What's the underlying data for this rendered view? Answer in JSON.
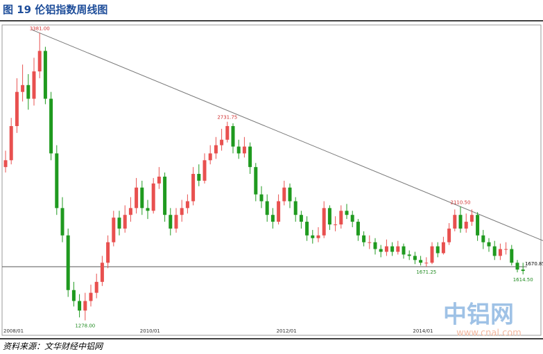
{
  "header": {
    "title": "图 19 伦铝指数周线图"
  },
  "chart_data": {
    "type": "candlestick",
    "categories": [
      "2008/01",
      null,
      null,
      null,
      null,
      null,
      null,
      null,
      null,
      null,
      null,
      null,
      null,
      null,
      null,
      null,
      null,
      null,
      null,
      null,
      null,
      null,
      null,
      null,
      "2010/01",
      null,
      null,
      null,
      null,
      null,
      null,
      null,
      null,
      null,
      null,
      null,
      null,
      null,
      null,
      null,
      null,
      null,
      null,
      null,
      null,
      null,
      null,
      null,
      "2012/01",
      null,
      null,
      null,
      null,
      null,
      null,
      null,
      null,
      null,
      null,
      null,
      null,
      null,
      null,
      null,
      null,
      null,
      null,
      null,
      null,
      null,
      null,
      null,
      "2014/01",
      null,
      null,
      null,
      null,
      null,
      null,
      null,
      null,
      null,
      null,
      null,
      null,
      null,
      null,
      null,
      null,
      null,
      null,
      null
    ],
    "open": [
      2400,
      2450,
      2700,
      2950,
      3000,
      2900,
      3100,
      3250,
      2900,
      2500,
      2100,
      1900,
      1500,
      1420,
      1350,
      1420,
      1480,
      1560,
      1700,
      1850,
      2030,
      1950,
      2050,
      2100,
      2250,
      2100,
      2080,
      2280,
      2330,
      2050,
      1950,
      2050,
      2100,
      2150,
      2350,
      2300,
      2450,
      2500,
      2560,
      2600,
      2700,
      2550,
      2500,
      2550,
      2400,
      2200,
      2150,
      2050,
      2000,
      2150,
      2250,
      2150,
      2050,
      2000,
      1900,
      1880,
      1900,
      2100,
      1980,
      1980,
      2080,
      2050,
      2000,
      1900,
      1850,
      1850,
      1800,
      1780,
      1820,
      1780,
      1820,
      1760,
      1750,
      1720,
      1700,
      1700,
      1820,
      1770,
      1850,
      1950,
      2050,
      1950,
      2000,
      2050,
      1900,
      1850,
      1820,
      1750,
      1800,
      1800,
      1700,
      1650
    ],
    "high": [
      2520,
      2760,
      3050,
      3150,
      3080,
      3200,
      3381,
      3280,
      2950,
      2560,
      2180,
      1950,
      1560,
      1470,
      1480,
      1540,
      1620,
      1750,
      1900,
      2080,
      2080,
      2120,
      2180,
      2320,
      2300,
      2160,
      2320,
      2400,
      2360,
      2100,
      2100,
      2160,
      2200,
      2400,
      2420,
      2500,
      2560,
      2620,
      2680,
      2731.75,
      2720,
      2600,
      2620,
      2580,
      2430,
      2260,
      2200,
      2100,
      2200,
      2300,
      2280,
      2180,
      2080,
      2040,
      1940,
      1960,
      2150,
      2120,
      2040,
      2120,
      2130,
      2080,
      2020,
      1930,
      1900,
      1880,
      1830,
      1870,
      1850,
      1860,
      1840,
      1790,
      1780,
      1750,
      1740,
      1850,
      1850,
      1890,
      1990,
      2090,
      2110.5,
      2060,
      2090,
      2070,
      1940,
      1880,
      1860,
      1840,
      1850,
      1830,
      1720,
      1700
    ],
    "low": [
      2360,
      2420,
      2650,
      2880,
      2820,
      2850,
      3050,
      2860,
      2450,
      2050,
      1850,
      1450,
      1380,
      1300,
      1278,
      1380,
      1440,
      1530,
      1660,
      1820,
      1900,
      1920,
      2000,
      2060,
      2050,
      2020,
      2060,
      2240,
      2000,
      1900,
      1920,
      2000,
      2060,
      2120,
      2260,
      2280,
      2420,
      2460,
      2520,
      2580,
      2500,
      2460,
      2470,
      2350,
      2150,
      2100,
      2000,
      1950,
      1980,
      2120,
      2100,
      2000,
      1950,
      1860,
      1840,
      1850,
      1880,
      1940,
      1930,
      1950,
      2020,
      1960,
      1860,
      1820,
      1800,
      1760,
      1740,
      1750,
      1750,
      1760,
      1730,
      1720,
      1690,
      1680,
      1671.25,
      1690,
      1740,
      1760,
      1830,
      1930,
      1920,
      1920,
      1970,
      1860,
      1800,
      1780,
      1720,
      1720,
      1760,
      1680,
      1630,
      1614.5
    ],
    "close": [
      2450,
      2700,
      2950,
      3000,
      2900,
      3100,
      3250,
      2900,
      2500,
      2100,
      1900,
      1500,
      1420,
      1350,
      1420,
      1480,
      1560,
      1700,
      1850,
      2030,
      1950,
      2050,
      2100,
      2250,
      2100,
      2080,
      2280,
      2330,
      2050,
      1950,
      2050,
      2100,
      2150,
      2350,
      2300,
      2450,
      2500,
      2560,
      2600,
      2700,
      2550,
      2500,
      2550,
      2400,
      2200,
      2150,
      2050,
      2000,
      2150,
      2250,
      2150,
      2050,
      2000,
      1900,
      1880,
      1900,
      2100,
      1980,
      1980,
      2080,
      2050,
      2000,
      1900,
      1850,
      1850,
      1800,
      1780,
      1820,
      1780,
      1820,
      1760,
      1750,
      1720,
      1700,
      1700,
      1820,
      1770,
      1850,
      1950,
      2050,
      1950,
      2000,
      2050,
      1900,
      1850,
      1820,
      1750,
      1800,
      1800,
      1700,
      1650,
      1640
    ],
    "high_labels": [
      null,
      null,
      null,
      null,
      null,
      null,
      "3381.00",
      null,
      null,
      null,
      null,
      null,
      null,
      null,
      null,
      null,
      null,
      null,
      null,
      null,
      null,
      null,
      null,
      null,
      null,
      null,
      null,
      null,
      null,
      null,
      null,
      null,
      null,
      null,
      null,
      null,
      null,
      null,
      null,
      "2731.75",
      null,
      null,
      null,
      null,
      null,
      null,
      null,
      null,
      null,
      null,
      null,
      null,
      null,
      null,
      null,
      null,
      null,
      null,
      null,
      null,
      null,
      null,
      null,
      null,
      null,
      null,
      null,
      null,
      null,
      null,
      null,
      null,
      null,
      null,
      null,
      null,
      null,
      null,
      null,
      null,
      "2110.50",
      null,
      null,
      null,
      null,
      null,
      null,
      null,
      null,
      null,
      null,
      null
    ],
    "low_labels": [
      null,
      null,
      null,
      null,
      null,
      null,
      null,
      null,
      null,
      null,
      null,
      null,
      null,
      null,
      "1278.00",
      null,
      null,
      null,
      null,
      null,
      null,
      null,
      null,
      null,
      null,
      null,
      null,
      null,
      null,
      null,
      null,
      null,
      null,
      null,
      null,
      null,
      null,
      null,
      null,
      null,
      null,
      null,
      null,
      null,
      null,
      null,
      null,
      null,
      null,
      null,
      null,
      null,
      null,
      null,
      null,
      null,
      null,
      null,
      null,
      null,
      null,
      null,
      null,
      null,
      null,
      null,
      null,
      null,
      null,
      null,
      null,
      null,
      null,
      null,
      "1671.25",
      null,
      null,
      null,
      null,
      null,
      null,
      null,
      null,
      null,
      null,
      null,
      null,
      null,
      null,
      null,
      null,
      "1614.50"
    ],
    "hline": {
      "value": 1670.85,
      "label": "1670.85"
    },
    "up_color": "#e8504f",
    "down_color": "#1f9a1f",
    "ylim": [
      1240,
      3440
    ],
    "watermark": {
      "title": "中铝网",
      "url": "www.cnal.com"
    }
  },
  "footer": {
    "source": "资料来源：文华财经中铝网"
  }
}
